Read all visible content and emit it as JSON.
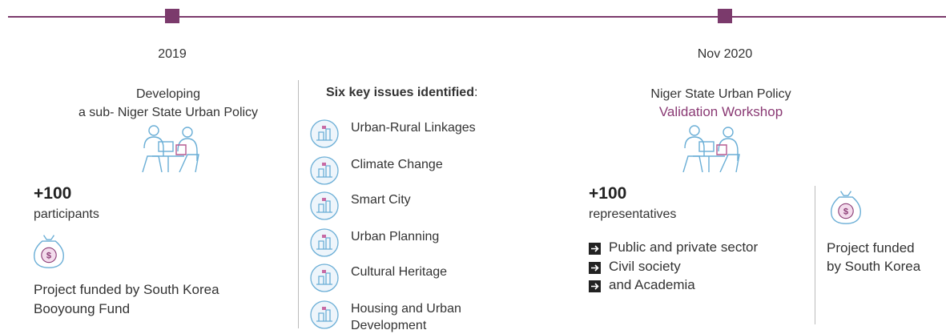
{
  "events": [
    {
      "date": "2019",
      "title": [
        "Developing",
        "a sub- Niger State Urban Policy"
      ],
      "count": "+100",
      "count_label": "participants",
      "funding": [
        "Project funded by South Korea",
        "Booyoung Fund"
      ]
    },
    {
      "date": "Nov 2020",
      "title": [
        "Niger State Urban Policy"
      ],
      "highlight": "Validation Workshop",
      "count": "+100",
      "count_label": "representatives",
      "groups": [
        "Public and private sector",
        "Civil society",
        "and Academia"
      ],
      "funding": [
        "Project funded",
        "by South Korea"
      ]
    }
  ],
  "issues": {
    "heading": "Six key issues identified",
    "heading_suffix": ":",
    "items": [
      "Urban-Rural Linkages",
      "Climate Change",
      "Smart City",
      "Urban Planning",
      "Cultural Heritage",
      "Housing and Urban Development"
    ]
  }
}
